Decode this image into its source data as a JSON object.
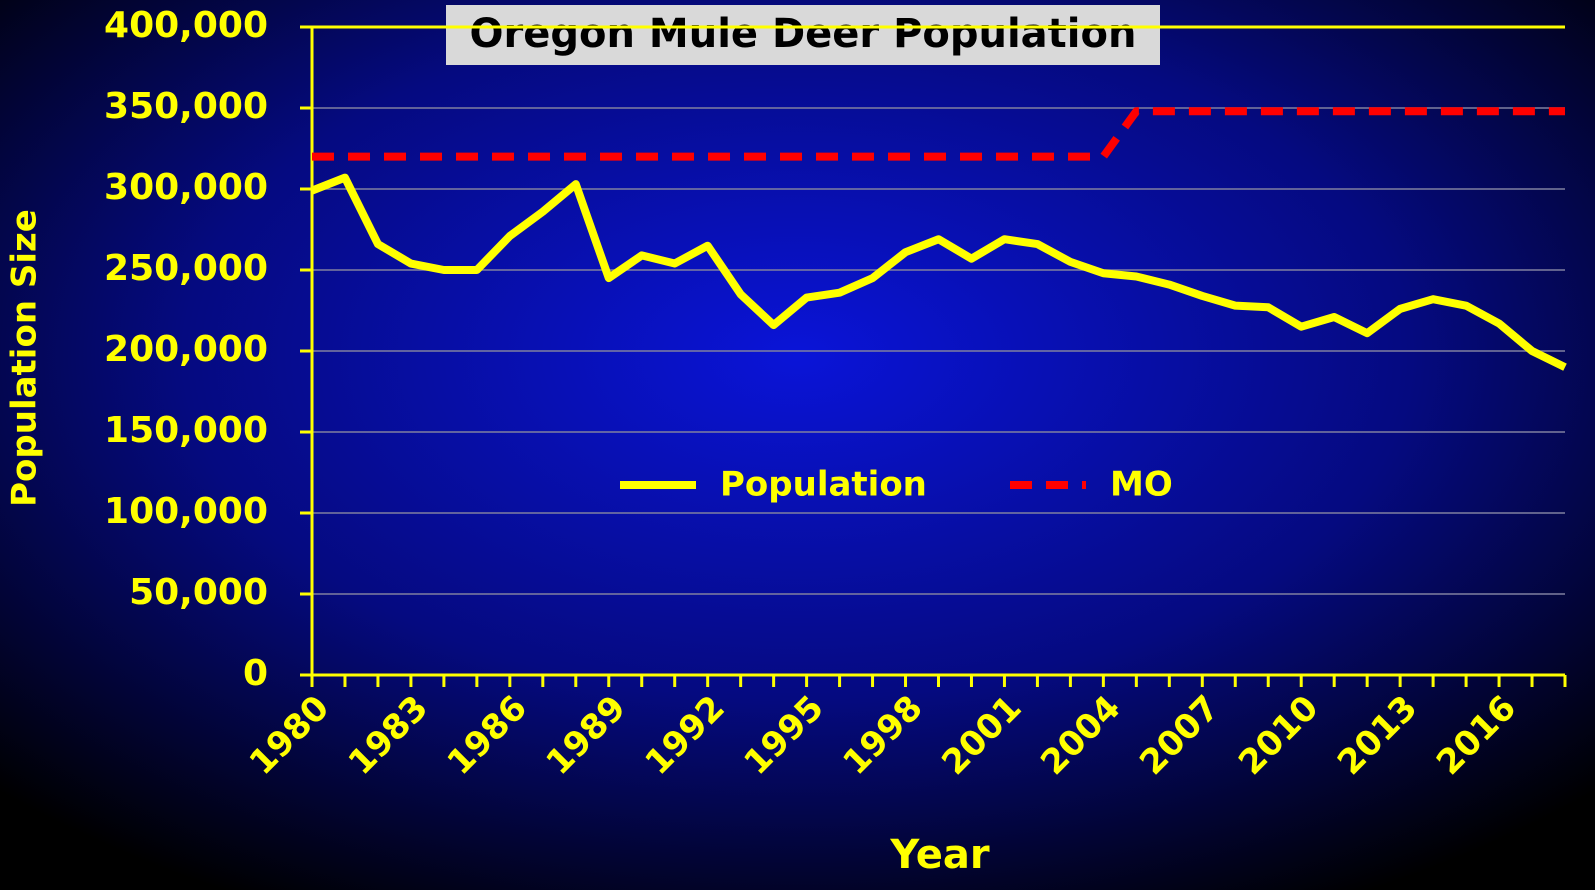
{
  "chart_data": {
    "type": "line",
    "title": "Oregon Mule Deer Population",
    "x_label": "Year",
    "y_label": "Population Size",
    "x": [
      1980,
      1981,
      1982,
      1983,
      1984,
      1985,
      1986,
      1987,
      1988,
      1989,
      1990,
      1991,
      1992,
      1993,
      1994,
      1995,
      1996,
      1997,
      1998,
      1999,
      2000,
      2001,
      2002,
      2003,
      2004,
      2005,
      2006,
      2007,
      2008,
      2009,
      2010,
      2011,
      2012,
      2013,
      2014,
      2015,
      2016,
      2017,
      2018
    ],
    "series": [
      {
        "name": "Population",
        "color": "#ffff00",
        "dash": false,
        "values": [
          299000,
          307000,
          266000,
          254000,
          250000,
          250000,
          271000,
          286000,
          303000,
          245000,
          259000,
          254000,
          265000,
          235000,
          216000,
          233000,
          236000,
          245000,
          261000,
          269000,
          257000,
          269000,
          266000,
          255000,
          248000,
          246000,
          241000,
          234000,
          228000,
          227000,
          215000,
          221000,
          211000,
          226000,
          232000,
          228000,
          217000,
          200000,
          190000
        ]
      },
      {
        "name": "MO",
        "color": "#ff0000",
        "dash": true,
        "values": [
          320000,
          320000,
          320000,
          320000,
          320000,
          320000,
          320000,
          320000,
          320000,
          320000,
          320000,
          320000,
          320000,
          320000,
          320000,
          320000,
          320000,
          320000,
          320000,
          320000,
          320000,
          320000,
          320000,
          320000,
          320000,
          348000,
          348000,
          348000,
          348000,
          348000,
          348000,
          348000,
          348000,
          348000,
          348000,
          348000,
          348000,
          348000,
          348000
        ]
      }
    ],
    "xlim": [
      1980,
      2018
    ],
    "xticks": [
      1980,
      1983,
      1986,
      1989,
      1992,
      1995,
      1998,
      2001,
      2004,
      2007,
      2010,
      2013,
      2016
    ],
    "ylim": [
      0,
      400000
    ],
    "yticks": [
      0,
      {
        "value": 50000,
        "label": "50,000"
      },
      {
        "value": 100000,
        "label": "100,000"
      },
      {
        "value": 150000,
        "label": "150,000"
      },
      {
        "value": 200000,
        "label": "200,000"
      },
      {
        "value": 250000,
        "label": "250,000"
      },
      {
        "value": 300000,
        "label": "300,000"
      },
      {
        "value": 350000,
        "label": "350,000"
      },
      {
        "value": 400000,
        "label": "400,000"
      }
    ],
    "grid": true
  }
}
